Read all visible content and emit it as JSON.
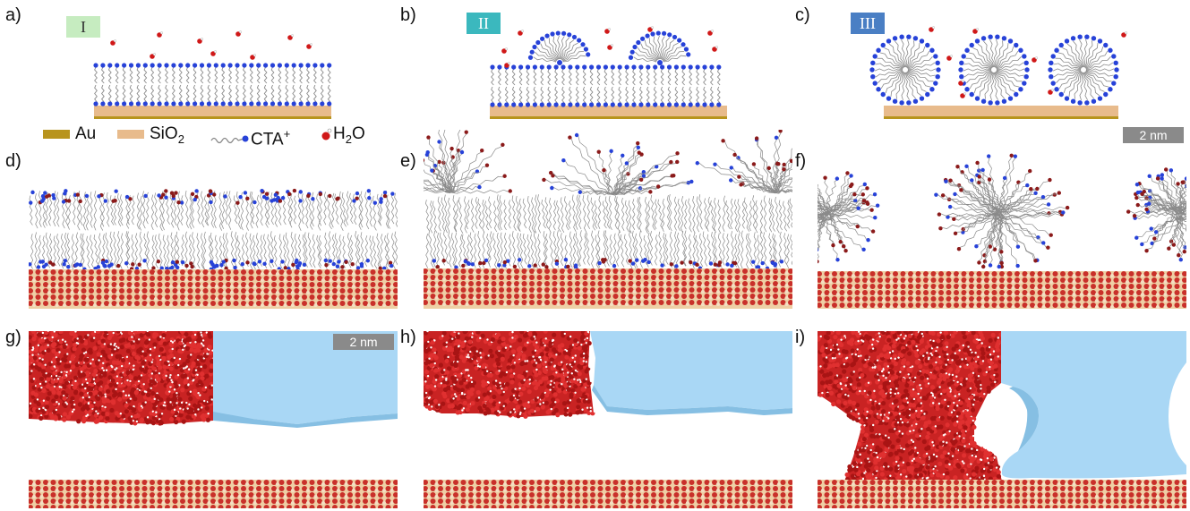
{
  "panels": {
    "a": "a)",
    "b": "b)",
    "c": "c)",
    "d": "d)",
    "e": "e)",
    "f": "f)",
    "g": "g)",
    "h": "h)",
    "i": "i)"
  },
  "badges": [
    {
      "label": "I",
      "color": "#c6ecc0",
      "text_color": "#333333"
    },
    {
      "label": "II",
      "color": "#3bb8be",
      "text_color": "#ffffff"
    },
    {
      "label": "III",
      "color": "#4a7fc4",
      "text_color": "#ffffff"
    }
  ],
  "legend": {
    "au": "Au",
    "sio2_main": "SiO",
    "sio2_sub": "2",
    "cta_main": "CTA",
    "cta_sup": "+",
    "h2o_main": "H",
    "h2o_sub": "2",
    "h2o_tail": "O"
  },
  "scale_bars": {
    "top": "2 nm",
    "bottom": "2 nm"
  },
  "colors": {
    "gold": "#b8941e",
    "silica": "#e8bb8c",
    "headgroup": "#2742d8",
    "water": "#d01818",
    "tail": "#8a8a8a",
    "surface_fill": "#a9d7f5"
  }
}
